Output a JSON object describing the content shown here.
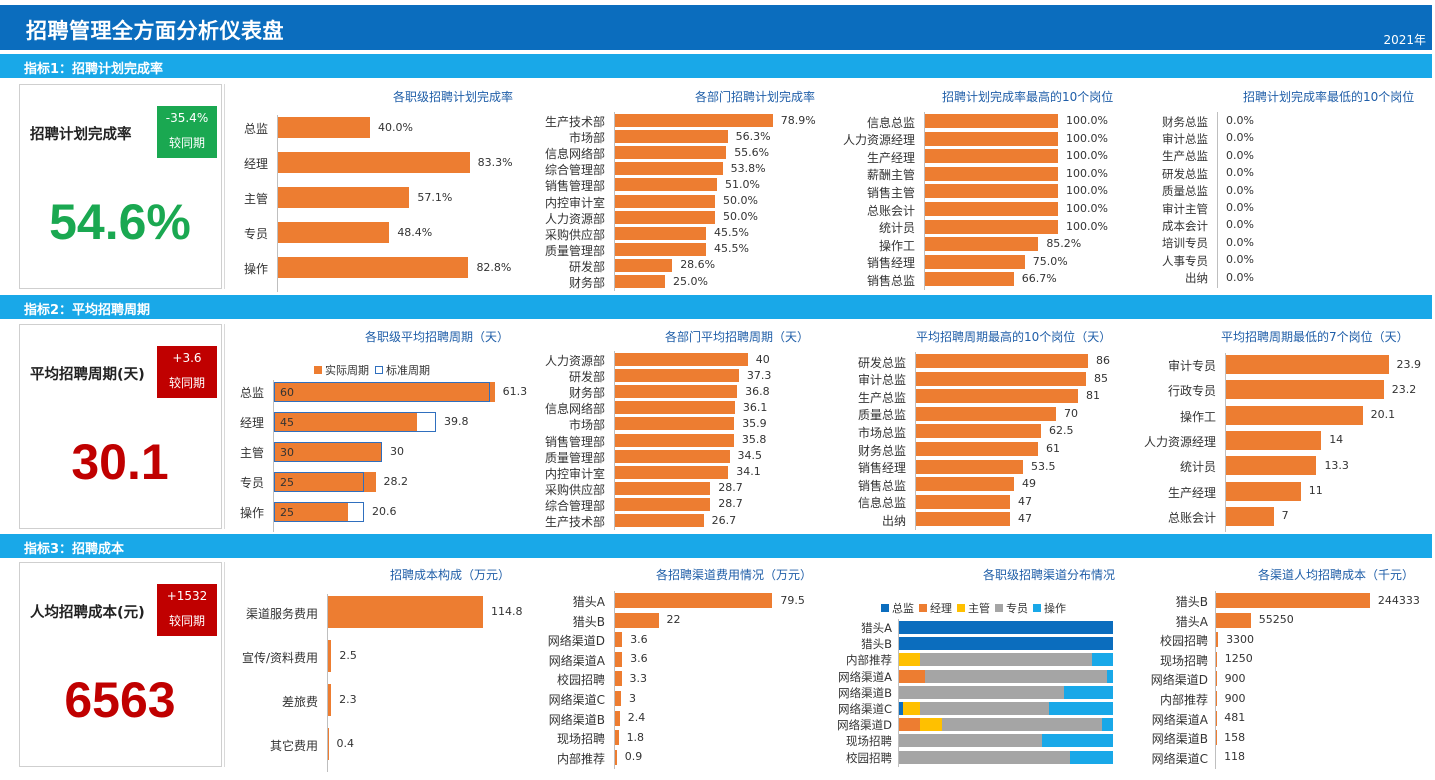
{
  "header": {
    "title": "招聘管理全方面分析仪表盘",
    "year": "2021年"
  },
  "colors": {
    "bar": "#ed7d31",
    "header": "#0b6dbe",
    "section": "#19a8e8",
    "title": "#1f5ea8",
    "green": "#1aa851",
    "red": "#c00000",
    "darkred": "#c00000"
  },
  "sections": [
    {
      "label": "指标1：招聘计划完成率"
    },
    {
      "label": "指标2：平均招聘周期"
    },
    {
      "label": "指标3：招聘成本"
    }
  ],
  "kpis": [
    {
      "name": "招聘计划完成率",
      "change": "-35.4%",
      "compare": "较同期",
      "value": "54.6%"
    },
    {
      "name": "平均招聘周期(天)",
      "change": "+3.6",
      "compare": "较同期",
      "value": "30.1"
    },
    {
      "name": "人均招聘成本(元)",
      "change": "+1532",
      "compare": "较同期",
      "value": "6563"
    }
  ],
  "chart_data": [
    {
      "id": "c1",
      "type": "bar",
      "title": "各职级招聘计划完成率",
      "categories": [
        "总监",
        "经理",
        "主管",
        "专员",
        "操作"
      ],
      "values": [
        40.0,
        83.3,
        57.1,
        48.4,
        82.8
      ],
      "labels": [
        "40.0%",
        "83.3%",
        "57.1%",
        "48.4%",
        "82.8%"
      ],
      "xlim": [
        0,
        100
      ]
    },
    {
      "id": "c2",
      "type": "bar",
      "title": "各部门招聘计划完成率",
      "categories": [
        "生产技术部",
        "市场部",
        "信息网络部",
        "综合管理部",
        "销售管理部",
        "内控审计室",
        "人力资源部",
        "采购供应部",
        "质量管理部",
        "研发部",
        "财务部"
      ],
      "values": [
        78.9,
        56.3,
        55.6,
        53.8,
        51.0,
        50.0,
        50.0,
        45.5,
        45.5,
        28.6,
        25.0
      ],
      "labels": [
        "78.9%",
        "56.3%",
        "55.6%",
        "53.8%",
        "51.0%",
        "50.0%",
        "50.0%",
        "45.5%",
        "45.5%",
        "28.6%",
        "25.0%"
      ],
      "xlim": [
        0,
        100
      ]
    },
    {
      "id": "c3",
      "type": "bar",
      "title": "招聘计划完成率最高的10个岗位",
      "categories": [
        "信息总监",
        "人力资源经理",
        "生产经理",
        "薪酬主管",
        "销售主管",
        "总账会计",
        "统计员",
        "操作工",
        "销售经理",
        "销售总监"
      ],
      "values": [
        100.0,
        100.0,
        100.0,
        100.0,
        100.0,
        100.0,
        100.0,
        85.2,
        75.0,
        66.7
      ],
      "labels": [
        "100.0%",
        "100.0%",
        "100.0%",
        "100.0%",
        "100.0%",
        "100.0%",
        "100.0%",
        "85.2%",
        "75.0%",
        "66.7%"
      ],
      "xlim": [
        0,
        100
      ]
    },
    {
      "id": "c4",
      "type": "bar",
      "title": "招聘计划完成率最低的10个岗位",
      "categories": [
        "财务总监",
        "审计总监",
        "生产总监",
        "研发总监",
        "质量总监",
        "审计主管",
        "成本会计",
        "培训专员",
        "人事专员",
        "出纳"
      ],
      "values": [
        0,
        0,
        0,
        0,
        0,
        0,
        0,
        0,
        0,
        0
      ],
      "labels": [
        "0.0%",
        "0.0%",
        "0.0%",
        "0.0%",
        "0.0%",
        "0.0%",
        "0.0%",
        "0.0%",
        "0.0%",
        "0.0%"
      ],
      "xlim": [
        0,
        100
      ]
    },
    {
      "id": "c5",
      "type": "bar",
      "title": "各职级平均招聘周期（天）",
      "legend": [
        "实际周期",
        "标准周期"
      ],
      "categories": [
        "总监",
        "经理",
        "主管",
        "专员",
        "操作"
      ],
      "series": [
        {
          "name": "实际周期",
          "values": [
            61.3,
            39.8,
            30,
            28.2,
            20.6
          ]
        },
        {
          "name": "标准周期",
          "values": [
            60,
            45,
            30,
            25,
            25
          ]
        }
      ],
      "xlim": [
        0,
        70
      ]
    },
    {
      "id": "c6",
      "type": "bar",
      "title": "各部门平均招聘周期（天）",
      "categories": [
        "人力资源部",
        "研发部",
        "财务部",
        "信息网络部",
        "市场部",
        "销售管理部",
        "质量管理部",
        "内控审计室",
        "采购供应部",
        "综合管理部",
        "生产技术部"
      ],
      "values": [
        40,
        37.3,
        36.8,
        36.1,
        35.9,
        35.8,
        34.5,
        34.1,
        28.7,
        28.7,
        26.7
      ],
      "xlim": [
        0,
        50
      ]
    },
    {
      "id": "c7",
      "type": "bar",
      "title": "平均招聘周期最高的10个岗位（天）",
      "categories": [
        "研发总监",
        "审计总监",
        "生产总监",
        "质量总监",
        "市场总监",
        "财务总监",
        "销售经理",
        "销售总监",
        "信息总监",
        "出纳"
      ],
      "values": [
        86,
        85,
        81,
        70,
        62.5,
        61,
        53.5,
        49,
        47,
        47
      ],
      "xlim": [
        0,
        100
      ]
    },
    {
      "id": "c8",
      "type": "bar",
      "title": "平均招聘周期最低的7个岗位（天）",
      "categories": [
        "审计专员",
        "行政专员",
        "操作工",
        "人力资源经理",
        "统计员",
        "生产经理",
        "总账会计"
      ],
      "values": [
        23.9,
        23.2,
        20.1,
        14,
        13.3,
        11,
        7
      ],
      "xlim": [
        0,
        30
      ]
    },
    {
      "id": "c9",
      "type": "bar",
      "title": "招聘成本构成（万元）",
      "categories": [
        "渠道服务费用",
        "宣传/资料费用",
        "差旅费",
        "其它费用"
      ],
      "values": [
        114.8,
        2.5,
        2.3,
        0.4
      ],
      "xlim": [
        0,
        140
      ]
    },
    {
      "id": "c10",
      "type": "bar",
      "title": "各招聘渠道费用情况（万元）",
      "categories": [
        "猎头A",
        "猎头B",
        "网络渠道D",
        "网络渠道A",
        "校园招聘",
        "网络渠道C",
        "网络渠道B",
        "现场招聘",
        "内部推荐"
      ],
      "values": [
        79.5,
        22,
        3.6,
        3.6,
        3.3,
        3,
        2.4,
        1.8,
        0.9
      ],
      "xlim": [
        0,
        100
      ]
    },
    {
      "id": "c11",
      "type": "bar",
      "title": "各职级招聘渠道分布情况",
      "legend": [
        "总监",
        "经理",
        "主管",
        "专员",
        "操作"
      ],
      "colors": [
        "#0b6dbe",
        "#ed7d31",
        "#ffc000",
        "#a5a5a5",
        "#19a8e8"
      ],
      "categories": [
        "猎头A",
        "猎头B",
        "内部推荐",
        "网络渠道A",
        "网络渠道B",
        "网络渠道C",
        "网络渠道D",
        "现场招聘",
        "校园招聘"
      ],
      "series": [
        {
          "name": "总监",
          "values": [
            1.0,
            1.0,
            0,
            0,
            0,
            0.02,
            0,
            0,
            0
          ]
        },
        {
          "name": "经理",
          "values": [
            0,
            0,
            0,
            0.12,
            0,
            0,
            0.1,
            0,
            0
          ]
        },
        {
          "name": "主管",
          "values": [
            0,
            0,
            0.1,
            0,
            0,
            0.08,
            0.1,
            0,
            0
          ]
        },
        {
          "name": "专员",
          "values": [
            0,
            0,
            0.8,
            0.85,
            0.77,
            0.6,
            0.75,
            0.67,
            0.8
          ]
        },
        {
          "name": "操作",
          "values": [
            0,
            0,
            0.1,
            0.03,
            0.23,
            0.3,
            0.05,
            0.33,
            0.2
          ]
        }
      ],
      "xlim": [
        0,
        1
      ]
    },
    {
      "id": "c12",
      "type": "bar",
      "title": "各渠道人均招聘成本（千元）",
      "categories": [
        "猎头B",
        "猎头A",
        "校园招聘",
        "现场招聘",
        "网络渠道D",
        "内部推荐",
        "网络渠道A",
        "网络渠道B",
        "网络渠道C"
      ],
      "values": [
        244333,
        55250,
        3300,
        1250,
        900,
        900,
        481,
        158,
        118
      ],
      "xlim": [
        0,
        270000
      ]
    }
  ]
}
